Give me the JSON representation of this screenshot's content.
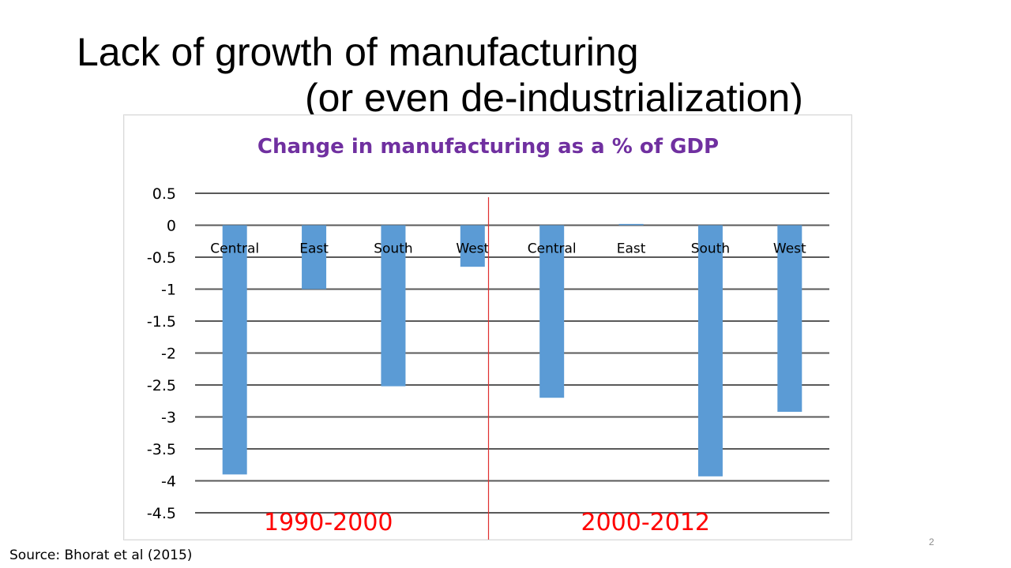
{
  "slide": {
    "title_line1": "Lack of growth of manufacturing",
    "title_line2": "(or even de-industrialization)",
    "source": "Source: Bhorat et al (2015)",
    "page_number": "2"
  },
  "chart_data": {
    "type": "bar",
    "title": "Change in manufacturing as a % of GDP",
    "xlabel": "",
    "ylabel": "",
    "categories": [
      "Central",
      "East",
      "South",
      "West",
      "Central",
      "East",
      "South",
      "West"
    ],
    "values": [
      -3.9,
      -1.0,
      -2.52,
      -0.65,
      -2.7,
      0.02,
      -3.93,
      -2.92
    ],
    "ylim": [
      -4.5,
      0.5
    ],
    "yticks": [
      0.5,
      0,
      -0.5,
      -1,
      -1.5,
      -2,
      -2.5,
      -3,
      -3.5,
      -4,
      -4.5
    ],
    "ytick_labels": [
      "0.5",
      "0",
      "-0.5",
      "-1",
      "-1.5",
      "-2",
      "-2.5",
      "-3",
      "-3.5",
      "-4",
      "-4.5"
    ],
    "grid": true,
    "legend": "none",
    "period_labels": [
      "1990-2000",
      "2000-2012"
    ],
    "bar_color": "#5b9bd5",
    "title_color": "#7030a0",
    "period_color": "#ff0000",
    "divider_color": "#e03030"
  }
}
